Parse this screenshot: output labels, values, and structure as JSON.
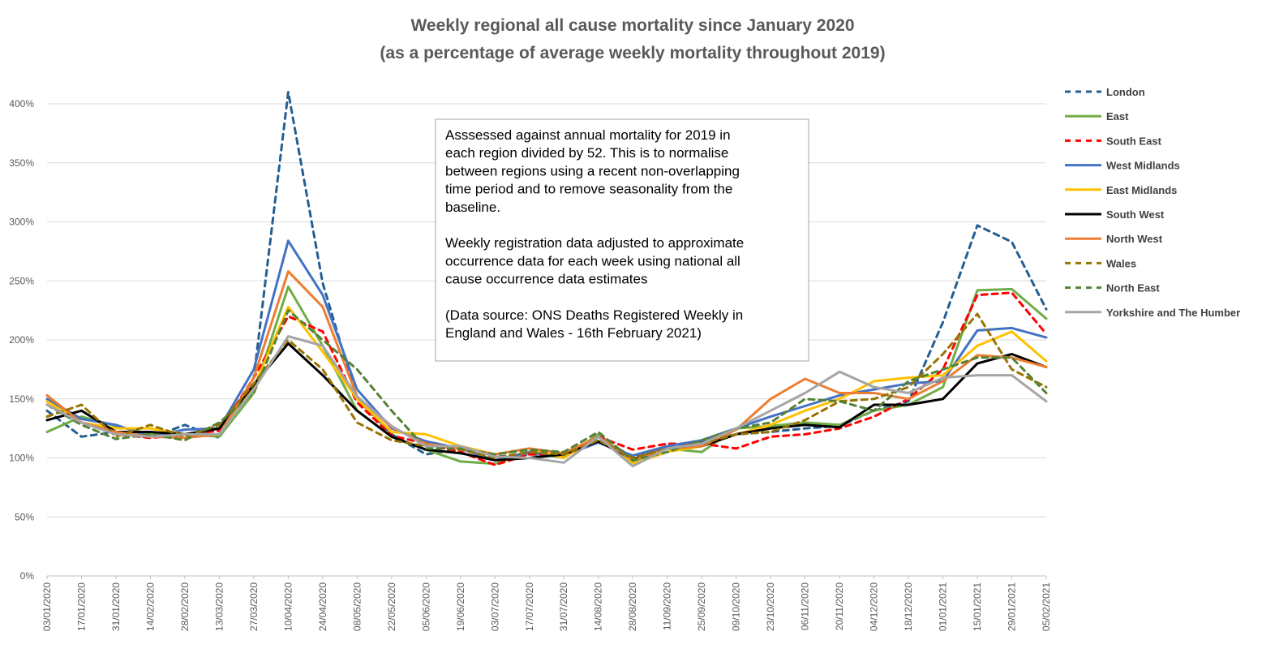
{
  "chart_data": {
    "type": "line",
    "title": "Weekly regional all cause mortality since January 2020",
    "subtitle": "(as a percentage of average weekly mortality throughout 2019)",
    "xlabel": "",
    "ylabel": "",
    "ylim": [
      0,
      400
    ],
    "yticks": [
      "0%",
      "50%",
      "100%",
      "150%",
      "200%",
      "250%",
      "300%",
      "350%",
      "400%"
    ],
    "grid": "horizontal",
    "legend_position": "right",
    "categories": [
      "03/01/2020",
      "17/01/2020",
      "31/01/2020",
      "14/02/2020",
      "28/02/2020",
      "13/03/2020",
      "27/03/2020",
      "10/04/2020",
      "24/04/2020",
      "08/05/2020",
      "22/05/2020",
      "05/06/2020",
      "19/06/2020",
      "03/07/2020",
      "17/07/2020",
      "31/07/2020",
      "14/08/2020",
      "28/08/2020",
      "11/09/2020",
      "25/09/2020",
      "09/10/2020",
      "23/10/2020",
      "06/11/2020",
      "20/11/2020",
      "04/12/2020",
      "18/12/2020",
      "01/01/2021",
      "15/01/2021",
      "29/01/2021",
      "05/02/2021"
    ],
    "series": [
      {
        "name": "London",
        "color": "#255E91",
        "dash": "dash",
        "values": [
          140,
          118,
          122,
          117,
          128,
          117,
          168,
          410,
          248,
          150,
          120,
          103,
          108,
          101,
          103,
          102,
          117,
          101,
          110,
          114,
          120,
          122,
          125,
          127,
          140,
          148,
          215,
          297,
          283,
          226
        ]
      },
      {
        "name": "East",
        "color": "#70AD47",
        "dash": "solid",
        "values": [
          122,
          135,
          127,
          120,
          120,
          118,
          155,
          245,
          195,
          140,
          118,
          107,
          97,
          95,
          105,
          100,
          120,
          97,
          108,
          105,
          125,
          127,
          130,
          128,
          140,
          145,
          160,
          242,
          243,
          218
        ]
      },
      {
        "name": "South East",
        "color": "#FF0000",
        "dash": "dash",
        "values": [
          148,
          130,
          120,
          117,
          120,
          123,
          168,
          220,
          207,
          147,
          119,
          112,
          105,
          94,
          103,
          103,
          118,
          107,
          112,
          112,
          108,
          118,
          120,
          125,
          135,
          150,
          175,
          238,
          240,
          205
        ]
      },
      {
        "name": "West Midlands",
        "color": "#4472C4",
        "dash": "solid",
        "values": [
          150,
          133,
          128,
          118,
          124,
          125,
          175,
          284,
          238,
          158,
          125,
          114,
          108,
          98,
          105,
          102,
          113,
          102,
          110,
          115,
          125,
          135,
          144,
          153,
          158,
          163,
          165,
          208,
          210,
          202
        ]
      },
      {
        "name": "East Midlands",
        "color": "#FFC000",
        "dash": "solid",
        "values": [
          148,
          130,
          125,
          125,
          120,
          120,
          160,
          228,
          190,
          150,
          122,
          120,
          110,
          103,
          108,
          100,
          118,
          95,
          105,
          110,
          120,
          128,
          140,
          150,
          165,
          168,
          170,
          195,
          207,
          182
        ]
      },
      {
        "name": "South West",
        "color": "#000000",
        "dash": "solid",
        "values": [
          132,
          140,
          122,
          122,
          120,
          125,
          162,
          197,
          170,
          140,
          118,
          107,
          104,
          98,
          100,
          103,
          114,
          99,
          108,
          110,
          120,
          125,
          128,
          126,
          145,
          145,
          150,
          180,
          188,
          177
        ]
      },
      {
        "name": "North West",
        "color": "#ED7D31",
        "dash": "solid",
        "values": [
          153,
          130,
          122,
          118,
          117,
          120,
          168,
          258,
          228,
          152,
          126,
          112,
          108,
          103,
          108,
          104,
          118,
          98,
          108,
          110,
          124,
          150,
          167,
          155,
          155,
          150,
          165,
          187,
          185,
          177
        ]
      },
      {
        "name": "Wales",
        "color": "#997300",
        "dash": "dash",
        "values": [
          135,
          145,
          118,
          128,
          118,
          128,
          163,
          200,
          175,
          130,
          115,
          110,
          107,
          100,
          105,
          103,
          115,
          100,
          108,
          112,
          120,
          122,
          132,
          148,
          150,
          160,
          188,
          222,
          175,
          160
        ]
      },
      {
        "name": "North East",
        "color": "#548235",
        "dash": "dash",
        "values": [
          145,
          128,
          116,
          120,
          115,
          130,
          155,
          225,
          200,
          175,
          140,
          108,
          108,
          103,
          107,
          105,
          122,
          98,
          105,
          115,
          125,
          130,
          150,
          148,
          140,
          165,
          175,
          185,
          185,
          155
        ]
      },
      {
        "name": "Yorkshire and The Humber",
        "color": "#A5A5A5",
        "dash": "solid",
        "values": [
          145,
          130,
          120,
          118,
          120,
          120,
          158,
          203,
          195,
          152,
          127,
          110,
          110,
          101,
          100,
          96,
          118,
          93,
          108,
          112,
          125,
          140,
          155,
          173,
          160,
          155,
          168,
          170,
          170,
          148
        ]
      }
    ]
  },
  "note": {
    "lines": [
      "Asssessed against annual mortality for 2019 in",
      "each region divided by 52. This is to normalise",
      "between regions using a recent non-overlapping",
      "time period and to remove seasonality from the",
      "baseline.",
      "",
      "Weekly registration data adjusted to approximate",
      "occurrence data for each week using national all",
      "cause occurrence data estimates",
      "",
      "(Data source: ONS Deaths Registered Weekly in",
      "England and Wales  - 16th February 2021)"
    ]
  }
}
